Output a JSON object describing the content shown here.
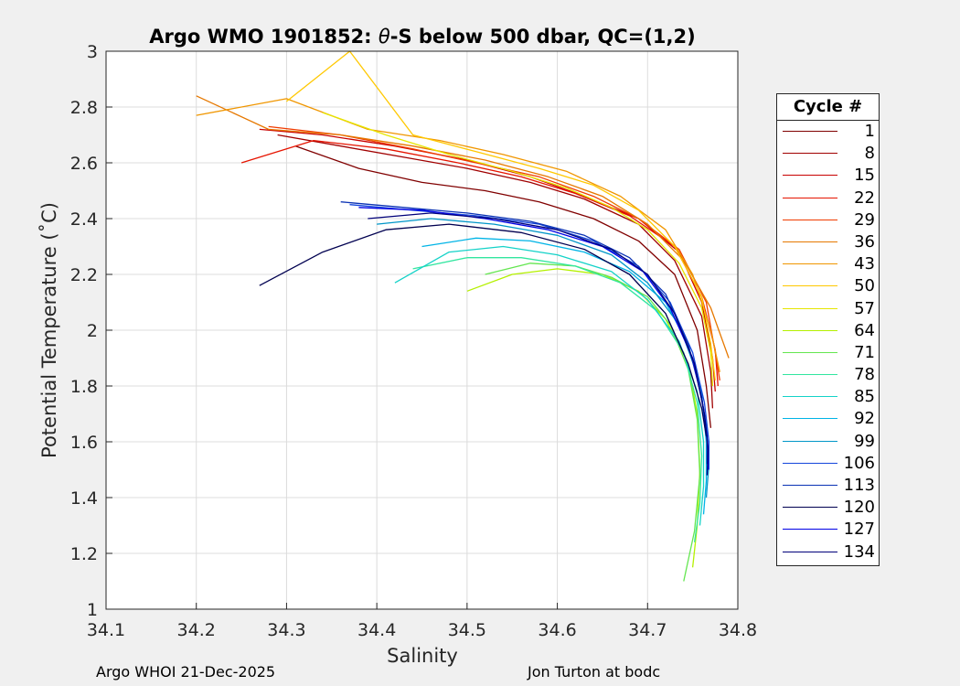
{
  "chart_data": {
    "type": "line",
    "title": "Argo WMO 1901852: θ-S below 500 dbar,  QC=(1,2)",
    "title_parts": [
      "Argo WMO 1901852: ",
      "θ",
      "-S below 500 dbar,  QC=(1,2)"
    ],
    "xlabel": "Salinity",
    "ylabel": "Potential Temperature (˚C)",
    "xlim": [
      34.1,
      34.8
    ],
    "ylim": [
      1,
      3
    ],
    "xticks": [
      "34.1",
      "34.2",
      "34.3",
      "34.4",
      "34.5",
      "34.6",
      "34.7",
      "34.8"
    ],
    "yticks": [
      "1",
      "1.2",
      "1.4",
      "1.6",
      "1.8",
      "2",
      "2.2",
      "2.4",
      "2.6",
      "2.8",
      "3"
    ],
    "grid": true,
    "legend_title": "Cycle #",
    "legend_position": "outside-right",
    "series": [
      {
        "name": "1",
        "color": "#800000",
        "x": [
          34.31,
          34.38,
          34.45,
          34.52,
          34.58,
          34.64,
          34.69,
          34.73,
          34.755,
          34.765,
          34.77
        ],
        "y": [
          2.66,
          2.58,
          2.53,
          2.5,
          2.46,
          2.4,
          2.32,
          2.2,
          2.0,
          1.8,
          1.65
        ]
      },
      {
        "name": "8",
        "color": "#a00000",
        "x": [
          34.29,
          34.36,
          34.43,
          34.5,
          34.57,
          34.63,
          34.69,
          34.73,
          34.76,
          34.77,
          34.772
        ],
        "y": [
          2.7,
          2.66,
          2.62,
          2.58,
          2.53,
          2.47,
          2.38,
          2.25,
          2.05,
          1.85,
          1.72
        ]
      },
      {
        "name": "15",
        "color": "#c80000",
        "x": [
          34.27,
          34.34,
          34.42,
          34.5,
          34.57,
          34.63,
          34.69,
          34.735,
          34.76,
          34.772,
          34.775
        ],
        "y": [
          2.72,
          2.7,
          2.66,
          2.61,
          2.55,
          2.48,
          2.4,
          2.28,
          2.1,
          1.9,
          1.78
        ]
      },
      {
        "name": "22",
        "color": "#e61400",
        "x": [
          34.25,
          34.33,
          34.41,
          34.49,
          34.56,
          34.62,
          34.68,
          34.73,
          34.76,
          34.775,
          34.778
        ],
        "y": [
          2.6,
          2.68,
          2.65,
          2.6,
          2.55,
          2.49,
          2.41,
          2.3,
          2.12,
          1.93,
          1.8
        ]
      },
      {
        "name": "29",
        "color": "#f03c00",
        "x": [
          34.28,
          34.36,
          34.44,
          34.51,
          34.58,
          34.64,
          34.69,
          34.735,
          34.765,
          34.775,
          34.78
        ],
        "y": [
          2.73,
          2.7,
          2.65,
          2.6,
          2.55,
          2.48,
          2.4,
          2.29,
          2.1,
          1.92,
          1.82
        ]
      },
      {
        "name": "36",
        "color": "#e67800",
        "x": [
          34.2,
          34.28,
          34.36,
          34.44,
          34.52,
          34.59,
          34.65,
          34.7,
          34.74,
          34.77,
          34.79
        ],
        "y": [
          2.84,
          2.72,
          2.7,
          2.66,
          2.61,
          2.55,
          2.48,
          2.38,
          2.25,
          2.08,
          1.9
        ]
      },
      {
        "name": "43",
        "color": "#f09600",
        "x": [
          34.2,
          34.3,
          34.39,
          34.47,
          34.54,
          34.61,
          34.67,
          34.72,
          34.75,
          34.77,
          34.78
        ],
        "y": [
          2.77,
          2.83,
          2.72,
          2.68,
          2.63,
          2.57,
          2.48,
          2.36,
          2.2,
          2.0,
          1.85
        ]
      },
      {
        "name": "50",
        "color": "#ffc800",
        "x": [
          34.3,
          34.37,
          34.44,
          34.51,
          34.58,
          34.64,
          34.69,
          34.73,
          34.76,
          34.77,
          34.775
        ],
        "y": [
          2.82,
          3.0,
          2.7,
          2.64,
          2.58,
          2.52,
          2.43,
          2.3,
          2.12,
          1.95,
          1.82
        ]
      },
      {
        "name": "57",
        "color": "#e6e600",
        "x": [
          34.34,
          34.41,
          34.48,
          34.55,
          34.61,
          34.66,
          34.7,
          34.735,
          34.76,
          34.77,
          34.772
        ],
        "y": [
          2.78,
          2.7,
          2.63,
          2.57,
          2.51,
          2.44,
          2.36,
          2.24,
          2.08,
          1.92,
          1.8
        ]
      },
      {
        "name": "64",
        "color": "#b4f000",
        "x": [
          34.5,
          34.55,
          34.6,
          34.65,
          34.69,
          34.72,
          34.745,
          34.755,
          34.758,
          34.755,
          34.75
        ],
        "y": [
          2.14,
          2.2,
          2.22,
          2.2,
          2.14,
          2.04,
          1.88,
          1.7,
          1.5,
          1.3,
          1.15
        ]
      },
      {
        "name": "71",
        "color": "#64e650",
        "x": [
          34.52,
          34.57,
          34.62,
          34.66,
          34.7,
          34.725,
          34.745,
          34.755,
          34.758,
          34.752,
          34.74
        ],
        "y": [
          2.2,
          2.24,
          2.23,
          2.19,
          2.12,
          2.02,
          1.86,
          1.68,
          1.48,
          1.28,
          1.1
        ]
      },
      {
        "name": "78",
        "color": "#32e6a0",
        "x": [
          34.44,
          34.5,
          34.56,
          34.62,
          34.67,
          34.71,
          34.74,
          34.755,
          34.76,
          34.758,
          34.752
        ],
        "y": [
          2.22,
          2.26,
          2.26,
          2.23,
          2.17,
          2.07,
          1.92,
          1.74,
          1.55,
          1.38,
          1.24
        ]
      },
      {
        "name": "85",
        "color": "#14d2c8",
        "x": [
          34.42,
          34.48,
          34.54,
          34.6,
          34.66,
          34.7,
          34.735,
          34.755,
          34.762,
          34.762,
          34.758
        ],
        "y": [
          2.17,
          2.28,
          2.3,
          2.27,
          2.21,
          2.11,
          1.96,
          1.78,
          1.6,
          1.44,
          1.3
        ]
      },
      {
        "name": "92",
        "color": "#00b4e6",
        "x": [
          34.45,
          34.51,
          34.57,
          34.63,
          34.68,
          34.72,
          34.745,
          34.76,
          34.765,
          34.765,
          34.762
        ],
        "y": [
          2.3,
          2.33,
          2.32,
          2.28,
          2.21,
          2.1,
          1.95,
          1.77,
          1.6,
          1.46,
          1.34
        ]
      },
      {
        "name": "99",
        "color": "#0096c8",
        "x": [
          34.4,
          34.46,
          34.53,
          34.6,
          34.66,
          34.7,
          34.735,
          34.755,
          34.765,
          34.768,
          34.765
        ],
        "y": [
          2.38,
          2.4,
          2.38,
          2.34,
          2.27,
          2.17,
          2.02,
          1.84,
          1.66,
          1.52,
          1.4
        ]
      },
      {
        "name": "106",
        "color": "#1446dc",
        "x": [
          34.37,
          34.44,
          34.51,
          34.58,
          34.64,
          34.69,
          34.725,
          34.75,
          34.763,
          34.768,
          34.768
        ],
        "y": [
          2.45,
          2.43,
          2.41,
          2.38,
          2.32,
          2.23,
          2.1,
          1.92,
          1.74,
          1.6,
          1.5
        ]
      },
      {
        "name": "113",
        "color": "#0a32b4",
        "x": [
          34.36,
          34.43,
          34.5,
          34.57,
          34.63,
          34.68,
          34.72,
          34.745,
          34.76,
          34.766,
          34.766
        ],
        "y": [
          2.46,
          2.44,
          2.42,
          2.39,
          2.34,
          2.26,
          2.13,
          1.95,
          1.76,
          1.62,
          1.52
        ]
      },
      {
        "name": "120",
        "color": "#000050",
        "x": [
          34.27,
          34.34,
          34.41,
          34.48,
          34.56,
          34.63,
          34.68,
          34.72,
          34.745,
          34.76,
          34.765
        ],
        "y": [
          2.16,
          2.28,
          2.36,
          2.38,
          2.35,
          2.29,
          2.2,
          2.06,
          1.88,
          1.72,
          1.62
        ]
      },
      {
        "name": "127",
        "color": "#0000e6",
        "x": [
          34.38,
          34.45,
          34.52,
          34.59,
          34.65,
          34.695,
          34.725,
          34.75,
          34.762,
          34.767,
          34.767
        ],
        "y": [
          2.44,
          2.43,
          2.4,
          2.36,
          2.3,
          2.21,
          2.08,
          1.9,
          1.72,
          1.58,
          1.5
        ]
      },
      {
        "name": "134",
        "color": "#00007a",
        "x": [
          34.39,
          34.46,
          34.53,
          34.6,
          34.66,
          34.7,
          34.73,
          34.752,
          34.763,
          34.767,
          34.766
        ],
        "y": [
          2.4,
          2.42,
          2.4,
          2.36,
          2.29,
          2.2,
          2.06,
          1.88,
          1.7,
          1.57,
          1.48
        ]
      }
    ]
  },
  "footer": {
    "left": "Argo WHOI 21-Dec-2025",
    "right": "Jon Turton at bodc"
  }
}
